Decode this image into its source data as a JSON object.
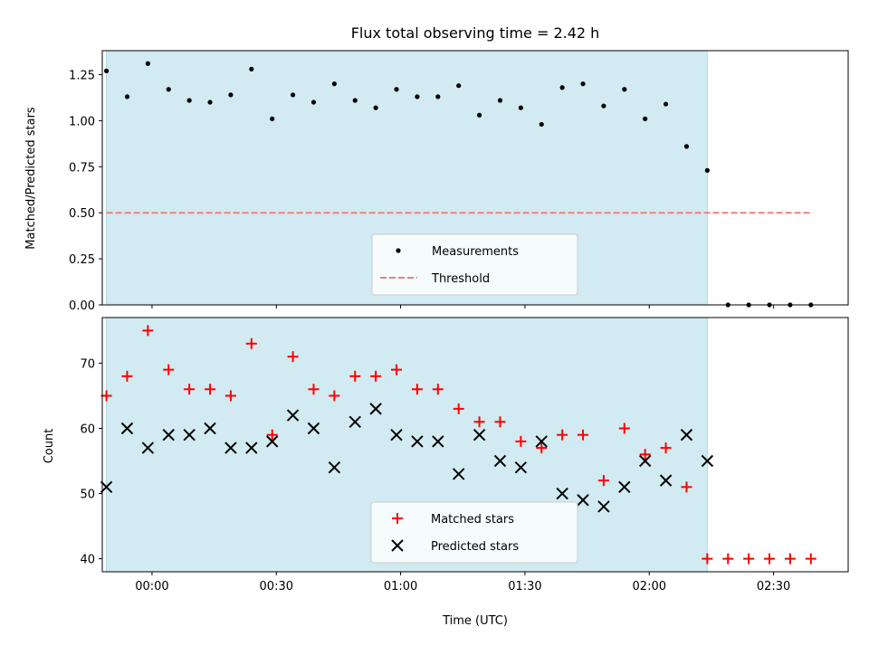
{
  "chart_data": [
    {
      "type": "scatter",
      "title": "Flux total observing time = 2.42 h",
      "ylabel": "Matched/Predicted stars",
      "xlabel": "",
      "xlim": [
        "-00:12",
        "02:48"
      ],
      "ylim": [
        0,
        1.38
      ],
      "yticks": [
        "0.00",
        "0.25",
        "0.50",
        "0.75",
        "1.00",
        "1.25"
      ],
      "observing_window": [
        "-00:11",
        "02:14"
      ],
      "window_color": "#add8e6",
      "legend": {
        "placement": "lower center",
        "entries": [
          "Measurements",
          "Threshold"
        ]
      },
      "series": [
        {
          "name": "Measurements",
          "color": "#000000",
          "marker": "dot",
          "x": [
            "-00:11",
            "-00:06",
            "-00:01",
            "00:04",
            "00:09",
            "00:14",
            "00:19",
            "00:24",
            "00:29",
            "00:34",
            "00:39",
            "00:44",
            "00:49",
            "00:54",
            "00:59",
            "01:04",
            "01:09",
            "01:14",
            "01:19",
            "01:24",
            "01:29",
            "01:34",
            "01:39",
            "01:44",
            "01:49",
            "01:54",
            "01:59",
            "02:04",
            "02:09",
            "02:14",
            "02:19",
            "02:24",
            "02:29",
            "02:34",
            "02:39"
          ],
          "y": [
            1.27,
            1.13,
            1.31,
            1.17,
            1.11,
            1.1,
            1.14,
            1.28,
            1.01,
            1.14,
            1.1,
            1.2,
            1.11,
            1.07,
            1.17,
            1.13,
            1.13,
            1.19,
            1.03,
            1.11,
            1.07,
            0.98,
            1.18,
            1.2,
            1.08,
            1.17,
            1.01,
            1.09,
            0.86,
            0.73,
            0,
            0,
            0,
            0,
            0
          ]
        },
        {
          "name": "Threshold",
          "color": "#f08080",
          "style": "dashed",
          "x": [
            "-00:11",
            "02:39"
          ],
          "y": [
            0.5,
            0.5
          ]
        }
      ]
    },
    {
      "type": "scatter",
      "title": "",
      "ylabel": "Count",
      "xlabel": "Time (UTC)",
      "xlim": [
        "-00:12",
        "02:48"
      ],
      "ylim": [
        38,
        77
      ],
      "yticks": [
        "40",
        "50",
        "60",
        "70"
      ],
      "xticks": [
        "00:00",
        "00:30",
        "01:00",
        "01:30",
        "02:00",
        "02:30"
      ],
      "observing_window": [
        "-00:11",
        "02:14"
      ],
      "window_color": "#add8e6",
      "legend": {
        "placement": "lower center",
        "entries": [
          "Matched stars",
          "Predicted stars"
        ]
      },
      "series": [
        {
          "name": "Matched stars",
          "color": "#ff0000",
          "marker": "plus",
          "x": [
            "-00:11",
            "-00:06",
            "-00:01",
            "00:04",
            "00:09",
            "00:14",
            "00:19",
            "00:24",
            "00:29",
            "00:34",
            "00:39",
            "00:44",
            "00:49",
            "00:54",
            "00:59",
            "01:04",
            "01:09",
            "01:14",
            "01:19",
            "01:24",
            "01:29",
            "01:34",
            "01:39",
            "01:44",
            "01:49",
            "01:54",
            "01:59",
            "02:04",
            "02:09",
            "02:14",
            "02:19",
            "02:24",
            "02:29",
            "02:34",
            "02:39"
          ],
          "y": [
            65,
            68,
            75,
            69,
            66,
            66,
            65,
            73,
            59,
            71,
            66,
            65,
            68,
            68,
            69,
            66,
            66,
            63,
            61,
            61,
            58,
            57,
            59,
            59,
            52,
            60,
            56,
            57,
            51,
            40,
            40,
            40,
            40,
            40,
            40
          ]
        },
        {
          "name": "Predicted stars",
          "color": "#000000",
          "marker": "x",
          "x": [
            "-00:11",
            "-00:06",
            "-00:01",
            "00:04",
            "00:09",
            "00:14",
            "00:19",
            "00:24",
            "00:29",
            "00:34",
            "00:39",
            "00:44",
            "00:49",
            "00:54",
            "00:59",
            "01:04",
            "01:09",
            "01:14",
            "01:19",
            "01:24",
            "01:29",
            "01:34",
            "01:39",
            "01:44",
            "01:49",
            "01:54",
            "01:59",
            "02:04",
            "02:09",
            "02:14"
          ],
          "y": [
            51,
            60,
            57,
            59,
            59,
            60,
            57,
            57,
            58,
            62,
            60,
            54,
            61,
            63,
            59,
            58,
            58,
            53,
            59,
            55,
            54,
            58,
            50,
            49,
            48,
            51,
            55,
            52,
            59,
            55
          ]
        }
      ]
    }
  ]
}
